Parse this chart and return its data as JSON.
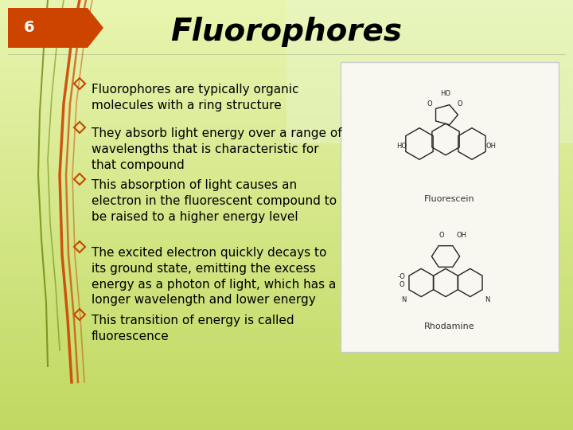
{
  "title": "Fluorophores",
  "slide_number": "6",
  "bg_color_top": "#d4e8a0",
  "bg_color_bottom": "#c8e070",
  "bullet_points": [
    "Fluorophores are typically organic\nmolecules with a ring structure",
    "They absorb light energy over a range of\nwavelengths that is characteristic for\nthat compound",
    "This absorption of light causes an\nelectron in the fluorescent compound to\nbe raised to a higher energy level",
    "The excited electron quickly decays to\nits ground state, emitting the excess\nenergy as a photon of light, which has a\nlonger wavelength and lower energy",
    "This transition of energy is called\nfluorescence"
  ],
  "bullet_color": "#cc4400",
  "title_color": "#000000",
  "text_color": "#000000",
  "title_fontsize": 28,
  "bullet_fontsize": 11,
  "number_fontsize": 14,
  "tab_color": "#cc4400",
  "image_box_color": "#f5f5dc"
}
